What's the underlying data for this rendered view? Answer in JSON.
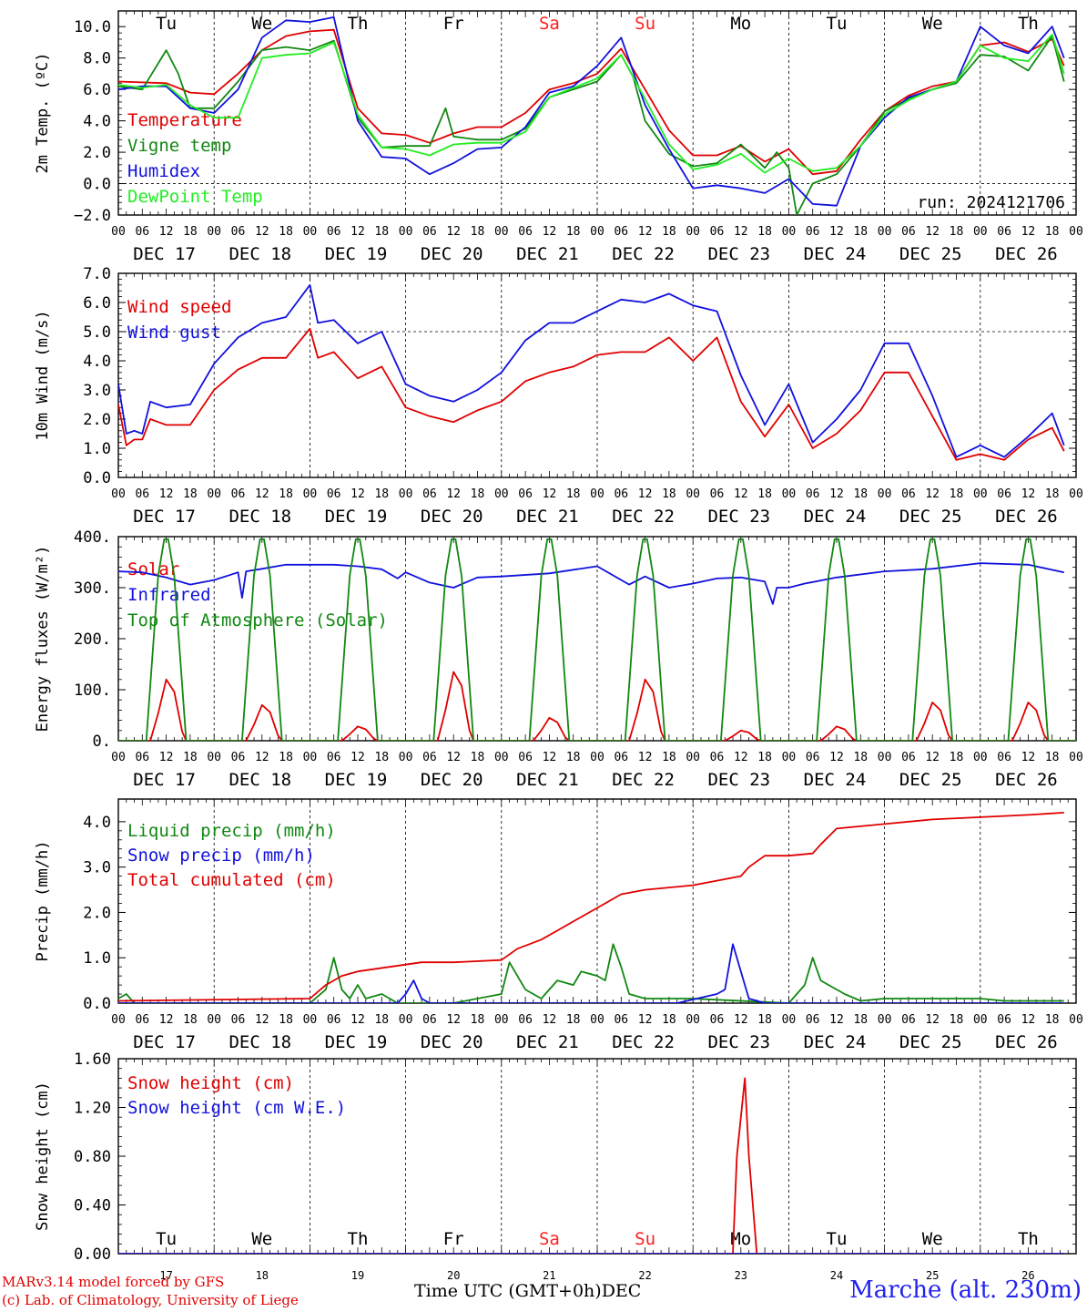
{
  "run_label": "run: 2024121706",
  "footer": {
    "model": "MARv3.14 model forced by GFS",
    "credit": "(c) Lab. of Climatology, University of Liege",
    "time_label": "Time UTC (GMT+0h)",
    "time_month": "DEC",
    "station": "Marche (alt. 230m)"
  },
  "days": [
    {
      "weekday": "Tu",
      "date": "DEC 17",
      "num": "17",
      "weekend": false
    },
    {
      "weekday": "We",
      "date": "DEC 18",
      "num": "18",
      "weekend": false
    },
    {
      "weekday": "Th",
      "date": "DEC 19",
      "num": "19",
      "weekend": false
    },
    {
      "weekday": "Fr",
      "date": "DEC 20",
      "num": "20",
      "weekend": false
    },
    {
      "weekday": "Sa",
      "date": "DEC 21",
      "num": "21",
      "weekend": true
    },
    {
      "weekday": "Su",
      "date": "DEC 22",
      "num": "22",
      "weekend": true
    },
    {
      "weekday": "Mo",
      "date": "DEC 23",
      "num": "23",
      "weekend": false
    },
    {
      "weekday": "Tu",
      "date": "DEC 24",
      "num": "24",
      "weekend": false
    },
    {
      "weekday": "We",
      "date": "DEC 25",
      "num": "25",
      "weekend": false
    },
    {
      "weekday": "Th",
      "date": "DEC 26",
      "num": "26",
      "weekend": false
    }
  ],
  "hour_labels": [
    "00",
    "06",
    "12",
    "18"
  ],
  "end_hour_label": "00",
  "colors": {
    "red": "#e00000",
    "green": "#118811",
    "blue": "#1111dd",
    "lightgreen": "#22ee22",
    "weekend": "#ff2020"
  },
  "chart_data": [
    {
      "id": "temp",
      "type": "line",
      "ylabel": "2m Temp. (ºC)",
      "ylim": [
        -2,
        11
      ],
      "yticks": [
        -2,
        0,
        2,
        4,
        6,
        8,
        10
      ],
      "ytick_labels": [
        "−2.0",
        "0.0",
        "2.0",
        "4.0",
        "6.0",
        "8.0",
        "10.0"
      ],
      "dashed_y": [
        0
      ],
      "show_weekdays": true,
      "show_run": true,
      "x_unit": "hours since DEC 17 00 UTC",
      "series": [
        {
          "name": "Temperature",
          "color": "#e00000",
          "x": [
            0,
            12,
            18,
            24,
            30,
            36,
            42,
            48,
            54,
            60,
            66,
            72,
            78,
            84,
            90,
            96,
            102,
            108,
            114,
            120,
            126,
            132,
            138,
            144,
            150,
            156,
            162,
            168,
            174,
            180,
            186,
            192,
            198,
            204,
            210,
            216,
            222,
            228,
            234,
            237
          ],
          "y": [
            6.5,
            6.4,
            5.8,
            5.7,
            7.0,
            8.5,
            9.4,
            9.7,
            9.8,
            4.8,
            3.2,
            3.1,
            2.6,
            3.2,
            3.6,
            3.6,
            4.5,
            6.0,
            6.4,
            7.0,
            8.6,
            6.0,
            3.4,
            1.8,
            1.8,
            2.4,
            1.4,
            2.2,
            0.6,
            0.8,
            2.8,
            4.6,
            5.6,
            6.2,
            6.5,
            8.8,
            9.0,
            8.4,
            9.2,
            7.5
          ]
        },
        {
          "name": "Vigne temp",
          "color": "#118811",
          "x": [
            0,
            6,
            12,
            15,
            18,
            24,
            30,
            36,
            42,
            48,
            54,
            60,
            66,
            72,
            78,
            82,
            84,
            90,
            96,
            102,
            108,
            114,
            120,
            126,
            129,
            132,
            138,
            144,
            150,
            156,
            162,
            165,
            168,
            170,
            174,
            180,
            186,
            192,
            198,
            204,
            210,
            216,
            222,
            228,
            234,
            237
          ],
          "y": [
            6.2,
            6.0,
            8.5,
            7.0,
            4.8,
            4.8,
            6.5,
            8.5,
            8.7,
            8.5,
            9.1,
            4.2,
            2.3,
            2.4,
            2.4,
            4.8,
            3.0,
            2.8,
            2.8,
            3.5,
            5.5,
            6.0,
            6.5,
            8.2,
            6.8,
            4.0,
            1.9,
            1.1,
            1.3,
            2.5,
            1.0,
            2.0,
            1.0,
            -2.0,
            0.0,
            0.6,
            2.4,
            4.6,
            5.4,
            6.0,
            6.4,
            8.2,
            8.1,
            7.2,
            9.4,
            6.5
          ]
        },
        {
          "name": "Humidex",
          "color": "#1111dd",
          "x": [
            0,
            6,
            12,
            18,
            24,
            30,
            36,
            42,
            48,
            54,
            60,
            66,
            72,
            78,
            84,
            90,
            96,
            102,
            108,
            114,
            120,
            126,
            132,
            138,
            144,
            150,
            156,
            162,
            168,
            174,
            180,
            186,
            192,
            198,
            204,
            210,
            216,
            222,
            228,
            234,
            237
          ],
          "y": [
            6.0,
            6.2,
            6.2,
            4.8,
            4.5,
            6.0,
            9.3,
            10.4,
            10.3,
            10.6,
            4.0,
            1.7,
            1.6,
            0.6,
            1.3,
            2.2,
            2.3,
            3.6,
            5.8,
            6.2,
            7.5,
            9.3,
            5.0,
            2.2,
            -0.3,
            -0.1,
            -0.3,
            -0.6,
            0.3,
            -1.3,
            -1.4,
            2.4,
            4.2,
            5.5,
            6.0,
            6.5,
            10.0,
            8.8,
            8.3,
            10.0,
            8.0
          ]
        },
        {
          "name": "DewPoint Temp",
          "color": "#22ee22",
          "x": [
            0,
            6,
            12,
            18,
            24,
            30,
            36,
            42,
            48,
            54,
            60,
            66,
            72,
            78,
            84,
            90,
            96,
            102,
            108,
            114,
            120,
            126,
            132,
            138,
            144,
            150,
            156,
            162,
            168,
            174,
            180,
            186,
            192,
            198,
            204,
            210,
            216,
            222,
            228,
            234,
            237
          ],
          "y": [
            6.3,
            6.1,
            6.3,
            5.0,
            4.2,
            4.2,
            8.0,
            8.2,
            8.3,
            9.0,
            4.4,
            2.3,
            2.2,
            1.8,
            2.5,
            2.6,
            2.6,
            3.3,
            5.5,
            6.1,
            6.7,
            8.2,
            5.4,
            2.5,
            0.9,
            1.2,
            1.9,
            0.7,
            1.6,
            0.8,
            1.0,
            2.4,
            4.4,
            5.3,
            6.0,
            6.5,
            8.8,
            8.0,
            7.8,
            9.5,
            7.0
          ]
        }
      ]
    },
    {
      "id": "wind",
      "type": "line",
      "ylabel": "10m Wind (m/s)",
      "ylim": [
        0,
        7
      ],
      "yticks": [
        0,
        1,
        2,
        3,
        4,
        5,
        6,
        7
      ],
      "ytick_labels": [
        "0.0",
        "1.0",
        "2.0",
        "3.0",
        "4.0",
        "5.0",
        "6.0",
        "7.0"
      ],
      "dashed_y": [
        5
      ],
      "x_unit": "hours since DEC 17 00 UTC",
      "series": [
        {
          "name": "Wind speed",
          "color": "#e00000",
          "x": [
            0,
            2,
            4,
            6,
            8,
            10,
            12,
            18,
            24,
            30,
            36,
            42,
            48,
            50,
            54,
            60,
            66,
            72,
            78,
            84,
            90,
            96,
            102,
            108,
            114,
            120,
            126,
            132,
            138,
            144,
            150,
            156,
            162,
            168,
            174,
            180,
            186,
            192,
            198,
            204,
            210,
            216,
            222,
            228,
            234,
            237
          ],
          "y": [
            2.5,
            1.1,
            1.3,
            1.3,
            2.0,
            1.9,
            1.8,
            1.8,
            3.0,
            3.7,
            4.1,
            4.1,
            5.1,
            4.1,
            4.3,
            3.4,
            3.8,
            2.4,
            2.1,
            1.9,
            2.3,
            2.6,
            3.3,
            3.6,
            3.8,
            4.2,
            4.3,
            4.3,
            4.8,
            4.0,
            4.8,
            2.6,
            1.4,
            2.5,
            1.0,
            1.5,
            2.3,
            3.6,
            3.6,
            2.1,
            0.6,
            0.8,
            0.6,
            1.3,
            1.7,
            0.9
          ]
        },
        {
          "name": "Wind gust",
          "color": "#1111dd",
          "x": [
            0,
            2,
            4,
            6,
            8,
            10,
            12,
            18,
            24,
            30,
            36,
            42,
            48,
            50,
            54,
            60,
            66,
            72,
            78,
            84,
            90,
            96,
            102,
            108,
            114,
            120,
            126,
            132,
            138,
            144,
            150,
            156,
            162,
            168,
            174,
            180,
            186,
            192,
            198,
            204,
            210,
            216,
            222,
            228,
            234,
            237
          ],
          "y": [
            3.2,
            1.5,
            1.6,
            1.5,
            2.6,
            2.5,
            2.4,
            2.5,
            3.9,
            4.8,
            5.3,
            5.5,
            6.6,
            5.3,
            5.4,
            4.6,
            5.0,
            3.2,
            2.8,
            2.6,
            3.0,
            3.6,
            4.7,
            5.3,
            5.3,
            5.7,
            6.1,
            6.0,
            6.3,
            5.9,
            5.7,
            3.5,
            1.8,
            3.2,
            1.2,
            2.0,
            3.0,
            4.6,
            4.6,
            2.8,
            0.7,
            1.1,
            0.7,
            1.4,
            2.2,
            1.1
          ]
        }
      ]
    },
    {
      "id": "energy",
      "type": "line",
      "ylabel": "Energy fluxes (W/m²)",
      "ylim": [
        0,
        400
      ],
      "yticks": [
        0,
        100,
        200,
        300,
        400
      ],
      "ytick_labels": [
        "0.",
        "100.",
        "200.",
        "300.",
        "400."
      ],
      "dashed_y": [],
      "x_unit": "hours since DEC 17 00 UTC",
      "series": [
        {
          "name": "Solar",
          "color": "#e00000",
          "peaks": [
            120,
            70,
            28,
            135,
            45,
            120,
            20,
            28,
            75,
            75
          ]
        },
        {
          "name": "Infrared",
          "color": "#1111dd",
          "x": [
            0,
            6,
            12,
            18,
            24,
            30,
            31,
            32,
            36,
            42,
            48,
            54,
            60,
            66,
            70,
            72,
            78,
            84,
            90,
            96,
            108,
            120,
            128,
            132,
            138,
            144,
            150,
            156,
            162,
            164,
            165,
            168,
            172,
            180,
            192,
            204,
            216,
            228,
            237
          ],
          "y": [
            332,
            330,
            320,
            306,
            315,
            330,
            280,
            332,
            337,
            345,
            345,
            345,
            342,
            336,
            318,
            330,
            310,
            300,
            320,
            322,
            328,
            342,
            306,
            322,
            300,
            308,
            318,
            320,
            312,
            268,
            300,
            300,
            308,
            320,
            332,
            337,
            348,
            345,
            330
          ]
        },
        {
          "name": "Top of Atmosphere (Solar)",
          "color": "#118811",
          "peak": 395,
          "rise_hour": 7,
          "set_hour": 16
        }
      ]
    },
    {
      "id": "precip",
      "type": "line",
      "ylabel": "Precip (mm/h)",
      "ylim": [
        0,
        4.5
      ],
      "yticks": [
        0,
        1,
        2,
        3,
        4
      ],
      "ytick_labels": [
        "0.0",
        "1.0",
        "2.0",
        "3.0",
        "4.0"
      ],
      "dashed_y": [],
      "x_unit": "hours since DEC 17 00 UTC",
      "series": [
        {
          "name": "Liquid precip (mm/h)",
          "color": "#118811",
          "x": [
            0,
            2,
            4,
            6,
            24,
            48,
            52,
            54,
            56,
            58,
            60,
            62,
            66,
            70,
            84,
            96,
            98,
            100,
            102,
            106,
            110,
            114,
            116,
            120,
            122,
            124,
            126,
            128,
            132,
            144,
            168,
            172,
            174,
            176,
            178,
            182,
            186,
            192,
            200,
            204,
            210,
            216,
            222,
            230,
            237
          ],
          "y": [
            0.1,
            0.2,
            0.0,
            0.0,
            0.0,
            0.0,
            0.3,
            1.0,
            0.3,
            0.1,
            0.4,
            0.1,
            0.2,
            0.0,
            0.0,
            0.2,
            0.9,
            0.6,
            0.3,
            0.1,
            0.5,
            0.4,
            0.7,
            0.6,
            0.5,
            1.3,
            0.8,
            0.2,
            0.1,
            0.1,
            0.0,
            0.4,
            1.0,
            0.5,
            0.4,
            0.2,
            0.05,
            0.1,
            0.1,
            0.1,
            0.1,
            0.1,
            0.05,
            0.05,
            0.05
          ]
        },
        {
          "name": "Snow precip (mm/h)",
          "color": "#1111dd",
          "x": [
            0,
            70,
            72,
            74,
            76,
            78,
            90,
            140,
            150,
            152,
            154,
            156,
            158,
            162,
            168,
            237
          ],
          "y": [
            0,
            0,
            0.2,
            0.5,
            0.1,
            0,
            0,
            0,
            0.2,
            0.3,
            1.3,
            0.7,
            0.1,
            0,
            0,
            0
          ]
        },
        {
          "name": "Total cumulated (cm)",
          "color": "#e00000",
          "x": [
            0,
            48,
            52,
            56,
            60,
            72,
            76,
            84,
            96,
            100,
            106,
            110,
            114,
            120,
            126,
            132,
            144,
            150,
            156,
            158,
            162,
            168,
            174,
            176,
            180,
            192,
            204,
            216,
            228,
            237
          ],
          "y": [
            0.05,
            0.1,
            0.4,
            0.6,
            0.7,
            0.85,
            0.9,
            0.9,
            0.95,
            1.2,
            1.4,
            1.6,
            1.8,
            2.1,
            2.4,
            2.5,
            2.6,
            2.7,
            2.8,
            3.0,
            3.25,
            3.25,
            3.3,
            3.5,
            3.85,
            3.95,
            4.05,
            4.1,
            4.15,
            4.2
          ]
        }
      ]
    },
    {
      "id": "snow",
      "type": "line",
      "ylabel": "Snow height (cm)",
      "ylim": [
        0,
        1.6
      ],
      "yticks": [
        0,
        0.4,
        0.8,
        1.2,
        1.6
      ],
      "ytick_labels": [
        "0.00",
        "0.40",
        "0.80",
        "1.20",
        "1.60"
      ],
      "dashed_y": [],
      "show_weekdays_bottom": true,
      "x_unit": "hours since DEC 17 00 UTC",
      "series": [
        {
          "name": "Snow height (cm)",
          "color": "#e00000",
          "x": [
            0,
            154,
            155,
            157,
            158,
            160,
            237
          ],
          "y": [
            0,
            0,
            0.8,
            1.44,
            0.8,
            0,
            0
          ]
        },
        {
          "name": "Snow height (cm W.E.)",
          "color": "#1111dd",
          "x": [
            0,
            237
          ],
          "y": [
            0,
            0
          ]
        }
      ]
    }
  ]
}
